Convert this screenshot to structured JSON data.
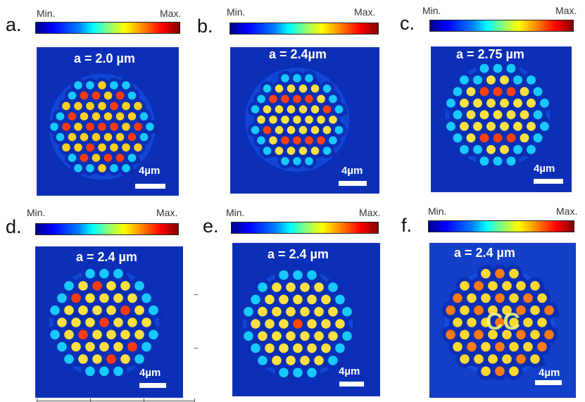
{
  "colorbar": {
    "min_label": "Min.",
    "max_label": "Max."
  },
  "scale_label": "4µm",
  "panels": [
    {
      "letter": "a.",
      "a_label": "a = 2.0 µm"
    },
    {
      "letter": "b.",
      "a_label": "a = 2.4µm"
    },
    {
      "letter": "c.",
      "a_label": "a = 2.75 µm"
    },
    {
      "letter": "d.",
      "a_label": "a = 2.4 µm"
    },
    {
      "letter": "e.",
      "a_label": "a = 2.4 µm"
    },
    {
      "letter": "f.",
      "a_label": "a = 2.4 µm"
    }
  ],
  "colors": {
    "background_blue": "#0b2fb6",
    "ring": "#18d8ff",
    "hot": "#ff2a00"
  }
}
